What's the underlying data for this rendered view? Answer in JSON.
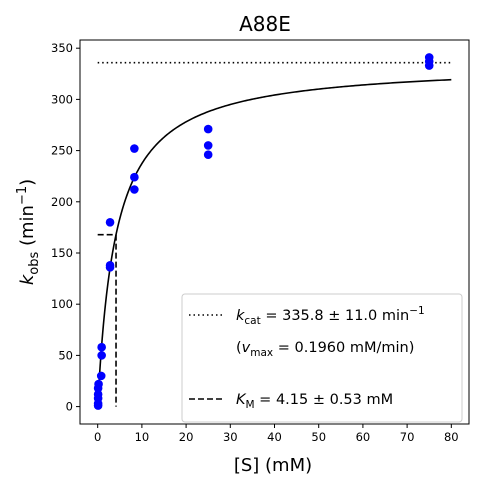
{
  "chart_data": {
    "type": "scatter",
    "title": "A88E",
    "xlabel": "[S] (mM)",
    "ylabel_main": "k",
    "ylabel_sub": "obs",
    "ylabel_unit": " (min",
    "ylabel_unit_sup": "−1",
    "ylabel_close": ")",
    "xlim": [
      -4,
      84
    ],
    "ylim": [
      -17,
      358
    ],
    "xticks": [
      0,
      10,
      20,
      30,
      40,
      50,
      60,
      70,
      80
    ],
    "yticks": [
      0,
      50,
      100,
      150,
      200,
      250,
      300,
      350
    ],
    "grid": false,
    "legend_position": "bottom-right",
    "colors": {
      "points": "#0000ff",
      "fit": "#000000",
      "axes": "#000000"
    },
    "points": [
      {
        "x": 0.1,
        "y": 1
      },
      {
        "x": 0.1,
        "y": 3
      },
      {
        "x": 0.1,
        "y": 8
      },
      {
        "x": 0.1,
        "y": 12
      },
      {
        "x": 0.1,
        "y": 18
      },
      {
        "x": 0.2,
        "y": 22
      },
      {
        "x": 0.8,
        "y": 30
      },
      {
        "x": 0.9,
        "y": 50
      },
      {
        "x": 0.9,
        "y": 58
      },
      {
        "x": 2.8,
        "y": 136
      },
      {
        "x": 2.8,
        "y": 138
      },
      {
        "x": 2.8,
        "y": 180
      },
      {
        "x": 8.3,
        "y": 212
      },
      {
        "x": 8.3,
        "y": 224
      },
      {
        "x": 8.3,
        "y": 252
      },
      {
        "x": 25,
        "y": 246
      },
      {
        "x": 25,
        "y": 255
      },
      {
        "x": 25,
        "y": 271
      },
      {
        "x": 75,
        "y": 333
      },
      {
        "x": 75,
        "y": 337
      },
      {
        "x": 75,
        "y": 341
      }
    ],
    "fit": {
      "model": "michaelis-menten",
      "kcat": 335.8,
      "km": 4.15,
      "x_range": [
        0,
        80
      ]
    },
    "kcat_line": {
      "y": 335.8,
      "x_range": [
        0,
        80
      ]
    },
    "km_marker": {
      "x": 4.15,
      "y": 167.9,
      "x_start": 0
    },
    "legend": {
      "entry1": {
        "symbol": "k",
        "sub": "cat",
        "text": " = 335.8 ± 11.0 min",
        "sup": "−1"
      },
      "entry2": {
        "open": "(",
        "symbol": "v",
        "sub": "max",
        "text": " = 0.1960 mM/min)"
      },
      "entry3": {
        "symbol": "K",
        "sub": "M",
        "text": " = 4.15 ± 0.53 mM"
      }
    }
  }
}
